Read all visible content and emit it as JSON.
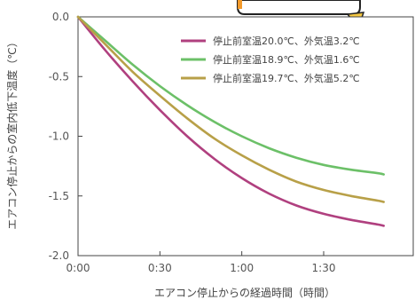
{
  "chart_data": {
    "type": "line",
    "title": "",
    "xlabel": "エアコン停止からの経過時間（時間）",
    "ylabel": "エアコン停止からの室内低下温度（℃）",
    "x_ticks": [
      "0:00",
      "0:30",
      "1:00",
      "1:30"
    ],
    "y_ticks": [
      "0.0",
      "-0.5",
      "-1.0",
      "-1.5",
      "-2.0"
    ],
    "xlim": [
      0,
      112
    ],
    "ylim": [
      -2.0,
      0.0
    ],
    "x_unit": "minutes since stop",
    "grid": false,
    "legend_position": "top-right",
    "series": [
      {
        "name": "停止前室温20.0℃、外気温3.2℃",
        "color": "#b0407f",
        "x": [
          0,
          10,
          20,
          30,
          40,
          50,
          60,
          70,
          80,
          90,
          100,
          110,
          112
        ],
        "y": [
          0.0,
          -0.28,
          -0.54,
          -0.78,
          -1.0,
          -1.19,
          -1.35,
          -1.48,
          -1.58,
          -1.65,
          -1.7,
          -1.74,
          -1.75
        ]
      },
      {
        "name": "停止前室温18.9℃、外気温1.6℃",
        "color": "#6cc068",
        "x": [
          0,
          10,
          20,
          30,
          40,
          50,
          60,
          70,
          80,
          90,
          100,
          110,
          112
        ],
        "y": [
          0.0,
          -0.2,
          -0.4,
          -0.58,
          -0.74,
          -0.88,
          -1.0,
          -1.1,
          -1.18,
          -1.24,
          -1.28,
          -1.31,
          -1.32
        ]
      },
      {
        "name": "停止前室温19.7℃、外気温5.2℃",
        "color": "#b8a048",
        "x": [
          0,
          10,
          20,
          30,
          40,
          50,
          60,
          70,
          80,
          90,
          100,
          110,
          112
        ],
        "y": [
          0.0,
          -0.23,
          -0.46,
          -0.66,
          -0.85,
          -1.02,
          -1.16,
          -1.28,
          -1.38,
          -1.45,
          -1.5,
          -1.54,
          -1.55
        ]
      }
    ]
  }
}
